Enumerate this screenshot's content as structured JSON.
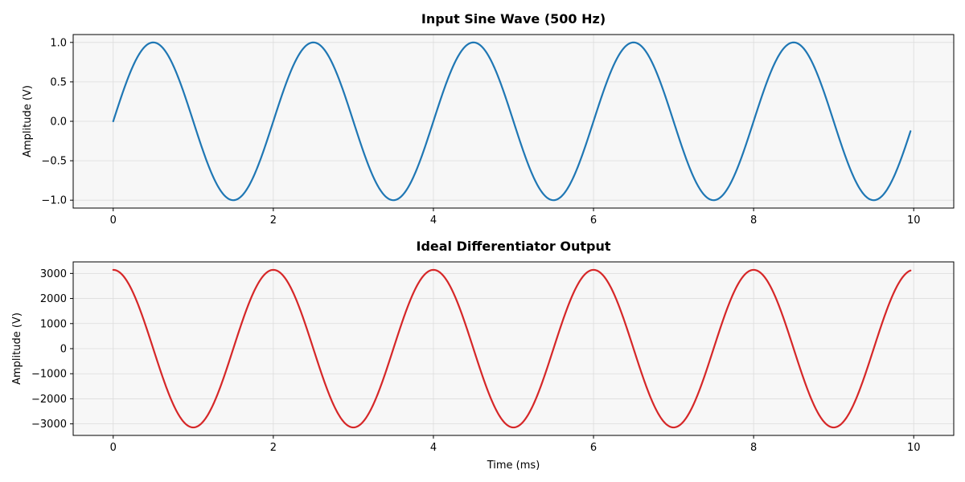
{
  "chart_data": [
    {
      "type": "line",
      "title": "Input Sine Wave (500 Hz)",
      "xlabel": "",
      "ylabel": "Amplitude (V)",
      "xlim": [
        -0.5,
        10.5
      ],
      "ylim": [
        -1.1,
        1.1
      ],
      "xticks": [
        0,
        2,
        4,
        6,
        8,
        10
      ],
      "yticks": [
        -1.0,
        -0.5,
        0.0,
        0.5,
        1.0
      ],
      "xtick_labels": [
        "0",
        "2",
        "4",
        "6",
        "8",
        "10"
      ],
      "ytick_labels": [
        "−1.0",
        "−0.5",
        "0.0",
        "0.5",
        "1.0"
      ],
      "grid": true,
      "series": [
        {
          "function": "sin",
          "amplitude": 1.0,
          "frequency_hz": 500,
          "x_start_ms": 0,
          "x_end_ms": 9.96,
          "color": "#1f77b4"
        }
      ]
    },
    {
      "type": "line",
      "title": "Ideal Differentiator Output",
      "xlabel": "Time (ms)",
      "ylabel": "Amplitude (V)",
      "xlim": [
        -0.5,
        10.5
      ],
      "ylim": [
        -3460,
        3460
      ],
      "xticks": [
        0,
        2,
        4,
        6,
        8,
        10
      ],
      "yticks": [
        -3000,
        -2000,
        -1000,
        0,
        1000,
        2000,
        3000
      ],
      "xtick_labels": [
        "0",
        "2",
        "4",
        "6",
        "8",
        "10"
      ],
      "ytick_labels": [
        "−3000",
        "−2000",
        "−1000",
        "0",
        "1000",
        "2000",
        "3000"
      ],
      "grid": true,
      "series": [
        {
          "function": "cos",
          "amplitude": 3141.6,
          "frequency_hz": 500,
          "x_start_ms": 0,
          "x_end_ms": 9.96,
          "color": "#d62728"
        }
      ]
    }
  ]
}
